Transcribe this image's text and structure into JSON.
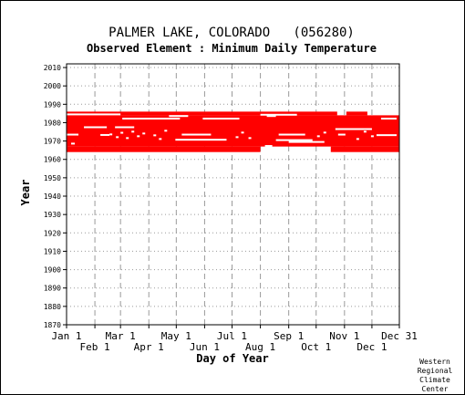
{
  "chart_data": {
    "type": "heatmap",
    "title": "PALMER LAKE, COLORADO   (056280)",
    "subtitle": "Observed Element : Minimum Daily Temperature",
    "xlabel": "Day of Year",
    "ylabel": "Year",
    "xlim": [
      1,
      365
    ],
    "ylim": [
      1870,
      2012
    ],
    "grid": true,
    "y_ticks": [
      1870,
      1880,
      1890,
      1900,
      1910,
      1920,
      1930,
      1940,
      1950,
      1960,
      1970,
      1980,
      1990,
      2000,
      2010
    ],
    "x_ticks": [
      {
        "label": "Jan 1",
        "day": 1,
        "row": 1
      },
      {
        "label": "Feb 1",
        "day": 32,
        "row": 2
      },
      {
        "label": "Mar 1",
        "day": 60,
        "row": 1
      },
      {
        "label": "Apr 1",
        "day": 91,
        "row": 2
      },
      {
        "label": "May 1",
        "day": 121,
        "row": 1
      },
      {
        "label": "Jun 1",
        "day": 152,
        "row": 2
      },
      {
        "label": "Jul 1",
        "day": 182,
        "row": 1
      },
      {
        "label": "Aug 1",
        "day": 213,
        "row": 2
      },
      {
        "label": "Sep 1",
        "day": 244,
        "row": 1
      },
      {
        "label": "Oct 1",
        "day": 274,
        "row": 2
      },
      {
        "label": "Nov 1",
        "day": 305,
        "row": 1
      },
      {
        "label": "Dec 1",
        "day": 335,
        "row": 2
      },
      {
        "label": "Dec 31",
        "day": 365,
        "row": 1
      }
    ],
    "color": "#ff0000",
    "record_segments": [
      {
        "start": 1,
        "end": 365,
        "years": [
          1967,
          1984
        ]
      },
      {
        "start": 1,
        "end": 213,
        "years": [
          1964,
          1967
        ]
      },
      {
        "start": 290,
        "end": 365,
        "years": [
          1964,
          1967
        ]
      },
      {
        "start": 1,
        "end": 297,
        "years": [
          1984,
          1986
        ]
      },
      {
        "start": 307,
        "end": 330,
        "years": [
          1984,
          1986
        ]
      }
    ],
    "missing_segments": [
      {
        "start": 1,
        "end": 60,
        "year": 1984.5
      },
      {
        "start": 213,
        "end": 253,
        "year": 1984.3
      },
      {
        "start": 62,
        "end": 125,
        "year": 1982.2
      },
      {
        "start": 150,
        "end": 190,
        "year": 1982.2
      },
      {
        "start": 113,
        "end": 134,
        "year": 1983.6
      },
      {
        "start": 220,
        "end": 230,
        "year": 1983.6
      },
      {
        "start": 345,
        "end": 362,
        "year": 1982.2
      },
      {
        "start": 20,
        "end": 45,
        "year": 1977.5
      },
      {
        "start": 54,
        "end": 75,
        "year": 1977.5
      },
      {
        "start": 295,
        "end": 335,
        "year": 1976.5
      },
      {
        "start": 0,
        "end": 14,
        "year": 1973.5
      },
      {
        "start": 38,
        "end": 48,
        "year": 1973.3
      },
      {
        "start": 120,
        "end": 176,
        "year": 1970.7
      },
      {
        "start": 127,
        "end": 159,
        "year": 1973.5
      },
      {
        "start": 233,
        "end": 262,
        "year": 1973.5
      },
      {
        "start": 298,
        "end": 306,
        "year": 1973.5
      },
      {
        "start": 340,
        "end": 362,
        "year": 1973.2
      },
      {
        "start": 230,
        "end": 270,
        "year": 1970.5
      },
      {
        "start": 244,
        "end": 283,
        "year": 1969.5
      },
      {
        "start": 6,
        "end": 10,
        "year": 1968.6
      },
      {
        "start": 218,
        "end": 226,
        "year": 1967.3
      },
      {
        "start": 48,
        "end": 51,
        "year": 1973.6
      },
      {
        "start": 55,
        "end": 58,
        "year": 1972.1
      },
      {
        "start": 60,
        "end": 63,
        "year": 1974.5
      },
      {
        "start": 66,
        "end": 69,
        "year": 1971.6
      },
      {
        "start": 72,
        "end": 75,
        "year": 1975.1
      },
      {
        "start": 78,
        "end": 81,
        "year": 1972.6
      },
      {
        "start": 84,
        "end": 87,
        "year": 1974.1
      },
      {
        "start": 96,
        "end": 99,
        "year": 1973.1
      },
      {
        "start": 102,
        "end": 105,
        "year": 1971.1
      },
      {
        "start": 108,
        "end": 111,
        "year": 1975.6
      },
      {
        "start": 186,
        "end": 189,
        "year": 1972.1
      },
      {
        "start": 192,
        "end": 195,
        "year": 1974.6
      },
      {
        "start": 200,
        "end": 203,
        "year": 1971.6
      },
      {
        "start": 275,
        "end": 278,
        "year": 1972.6
      },
      {
        "start": 282,
        "end": 285,
        "year": 1974.6
      },
      {
        "start": 318,
        "end": 321,
        "year": 1971.1
      },
      {
        "start": 326,
        "end": 329,
        "year": 1975.1
      },
      {
        "start": 334,
        "end": 337,
        "year": 1972.6
      }
    ]
  },
  "credit": {
    "line1": "Western",
    "line2": "Regional",
    "line3": "Climate",
    "line4": "Center"
  }
}
